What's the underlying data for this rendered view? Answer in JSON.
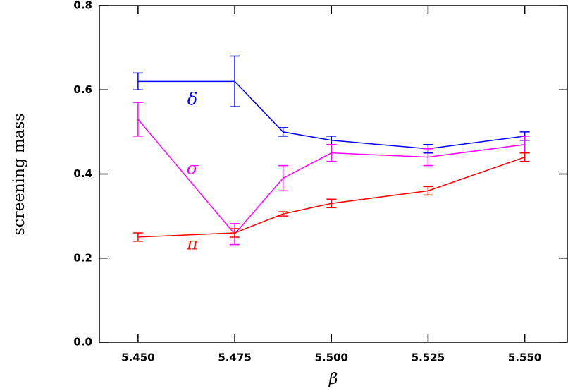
{
  "chart_data": {
    "type": "line",
    "xlabel": "β",
    "ylabel": "screening mass",
    "x": [
      5.45,
      5.475,
      5.4875,
      5.5,
      5.525,
      5.55
    ],
    "series": [
      {
        "name": "δ",
        "color": "#0000ff",
        "values": [
          0.62,
          0.62,
          0.5,
          0.48,
          0.46,
          0.49
        ],
        "errors": [
          0.02,
          0.06,
          0.01,
          0.01,
          0.01,
          0.01
        ]
      },
      {
        "name": "σ",
        "color": "#ff00ff",
        "values": [
          0.53,
          0.257,
          0.39,
          0.45,
          0.44,
          0.47
        ],
        "errors": [
          0.04,
          0.025,
          0.03,
          0.02,
          0.02,
          0.02
        ]
      },
      {
        "name": "π",
        "color": "#ff0000",
        "values": [
          0.25,
          0.26,
          0.305,
          0.33,
          0.36,
          0.44
        ],
        "errors": [
          0.01,
          0.01,
          0.005,
          0.01,
          0.01,
          0.01
        ]
      }
    ],
    "xlim": [
      5.44,
      5.561
    ],
    "ylim": [
      0,
      0.8
    ],
    "xticks": [
      {
        "value": 5.45,
        "label": "5.450"
      },
      {
        "value": 5.475,
        "label": "5.475"
      },
      {
        "value": 5.5,
        "label": "5.500"
      },
      {
        "value": 5.525,
        "label": "5.525"
      },
      {
        "value": 5.55,
        "label": "5.550"
      }
    ],
    "yticks": [
      {
        "value": 0,
        "label": "0.0"
      },
      {
        "value": 0.2,
        "label": "0.2"
      },
      {
        "value": 0.4,
        "label": "0.4"
      },
      {
        "value": 0.6,
        "label": "0.6"
      },
      {
        "value": 0.8,
        "label": "0.8"
      }
    ]
  }
}
